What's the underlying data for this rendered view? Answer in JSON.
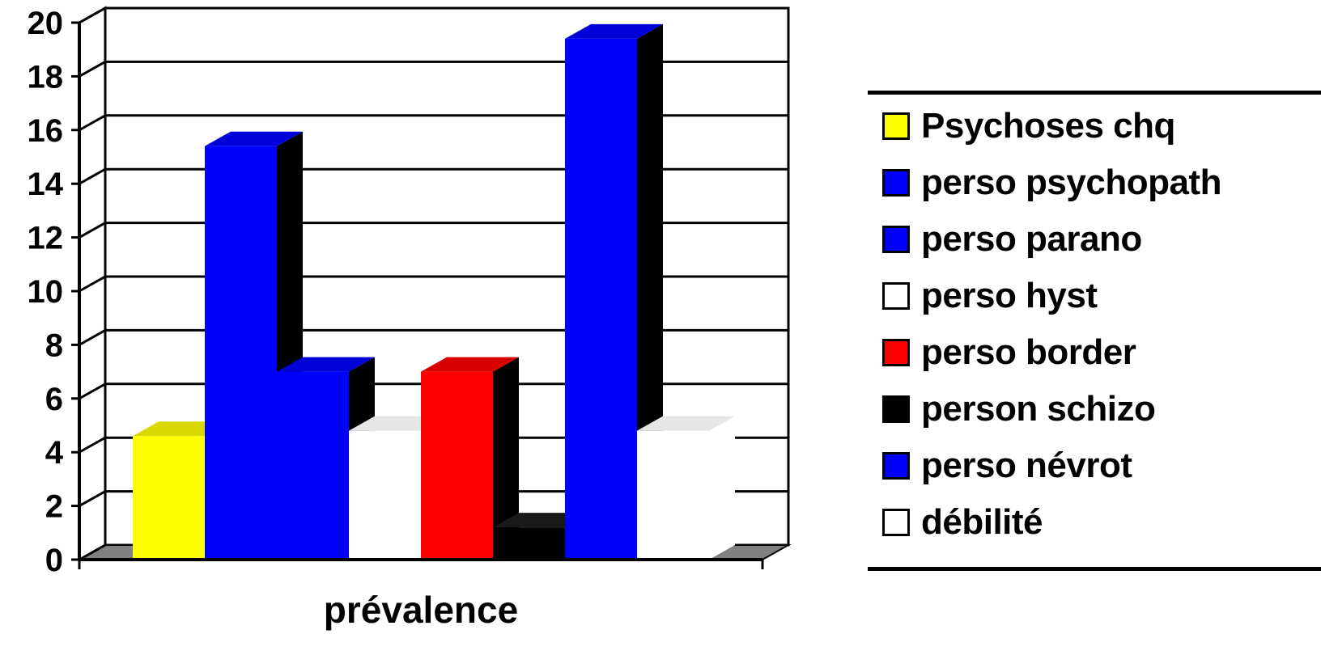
{
  "chart_data": {
    "type": "bar",
    "title": "",
    "xlabel": "prévalence",
    "ylabel": "",
    "categories": [
      "prévalence"
    ],
    "ylim": [
      0,
      20
    ],
    "yticks": [
      "0",
      "2",
      "4",
      "6",
      "8",
      "10",
      "12",
      "14",
      "16",
      "18",
      "20"
    ],
    "grid": true,
    "legend_position": "right",
    "series": [
      {
        "name": "Psychoses chq",
        "values": [
          4.6
        ],
        "color": "#ffff00"
      },
      {
        "name": "perso psychopath",
        "values": [
          15.4
        ],
        "color": "#0000ff"
      },
      {
        "name": "perso parano",
        "values": [
          7.0
        ],
        "color": "#0000ff"
      },
      {
        "name": "perso hyst",
        "values": [
          4.8
        ],
        "color": "#ffffff"
      },
      {
        "name": "perso border",
        "values": [
          7.0
        ],
        "color": "#ff0000"
      },
      {
        "name": "person schizo",
        "values": [
          1.2
        ],
        "color": "#000000"
      },
      {
        "name": "perso névrot",
        "values": [
          19.4
        ],
        "color": "#0000ff"
      },
      {
        "name": "débilité",
        "values": [
          4.8
        ],
        "color": "#ffffff"
      }
    ]
  }
}
